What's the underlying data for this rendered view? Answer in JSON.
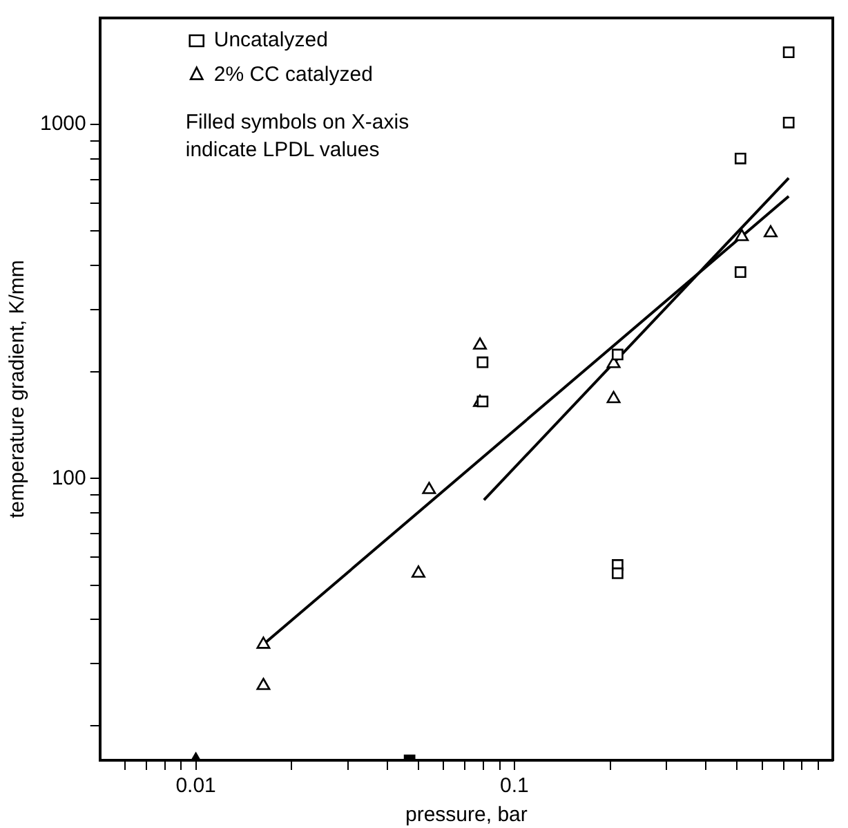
{
  "chart_data": {
    "type": "scatter",
    "xlabel": "pressure, bar",
    "ylabel": "temperature gradient, K/mm",
    "log": "xy",
    "xlim": [
      0.005,
      1
    ],
    "ylim": [
      16,
      2000
    ],
    "xticks": [
      {
        "value": 0.006,
        "label": null
      },
      {
        "value": 0.007,
        "label": null
      },
      {
        "value": 0.008,
        "label": null
      },
      {
        "value": 0.009,
        "label": null
      },
      0.01,
      {
        "value": 0.02,
        "label": null
      },
      {
        "value": 0.03,
        "label": null
      },
      {
        "value": 0.04,
        "label": null
      },
      {
        "value": 0.05,
        "label": null
      },
      {
        "value": 0.06,
        "label": null
      },
      {
        "value": 0.07,
        "label": null
      },
      {
        "value": 0.08,
        "label": null
      },
      {
        "value": 0.09,
        "label": null
      },
      0.1,
      {
        "value": 0.2,
        "label": null
      },
      {
        "value": 0.3,
        "label": null
      },
      {
        "value": 0.4,
        "label": null
      },
      {
        "value": 0.5,
        "label": null
      },
      {
        "value": 0.6,
        "label": null
      },
      {
        "value": 0.7,
        "label": null
      },
      {
        "value": 0.8,
        "label": null
      },
      {
        "value": 0.9,
        "label": null
      }
    ],
    "yticks": [
      {
        "value": 20,
        "label": null
      },
      {
        "value": 30,
        "label": null
      },
      {
        "value": 40,
        "label": null
      },
      {
        "value": 50,
        "label": null
      },
      {
        "value": 60,
        "label": null
      },
      {
        "value": 70,
        "label": null
      },
      {
        "value": 80,
        "label": null
      },
      {
        "value": 90,
        "label": null
      },
      100,
      {
        "value": 200,
        "label": null
      },
      {
        "value": 300,
        "label": null
      },
      {
        "value": 400,
        "label": null
      },
      {
        "value": 500,
        "label": null
      },
      {
        "value": 600,
        "label": null
      },
      {
        "value": 700,
        "label": null
      },
      {
        "value": 800,
        "label": null
      },
      {
        "value": 900,
        "label": null
      },
      1000
    ],
    "legend": "top left",
    "grid": false,
    "annotations": [
      "Filled symbols on X-axis indicate LPDL values"
    ],
    "series": [
      {
        "name": "Uncatalyzed",
        "marker": "square",
        "color": "#000000",
        "x": [
          0.0795,
          0.0795,
          0.211,
          0.211,
          0.211,
          0.513,
          0.513,
          0.727,
          0.727
        ],
        "values": [
          213,
          165,
          224,
          57,
          54,
          802,
          383,
          1600,
          1013
        ]
      },
      {
        "name": "2% CC catalyzed",
        "marker": "triangle",
        "color": "#000000",
        "x": [
          0.0163,
          0.0163,
          0.05,
          0.054,
          0.078,
          0.078,
          0.205,
          0.205,
          0.518,
          0.638
        ],
        "values": [
          34,
          26,
          54,
          93,
          238,
          164,
          211,
          168,
          482,
          494
        ]
      },
      {
        "marker": "triangle",
        "color": "#000000",
        "x": [
          0.01
        ],
        "values": [
          16
        ]
      },
      {
        "marker": "square",
        "color": "#000000",
        "x": [
          0.0469
        ],
        "values": [
          16
        ]
      },
      {
        "type": "line",
        "marker": "none",
        "line_style": "solid",
        "color": "#000000",
        "x": [
          0.0163,
          0.727
        ],
        "values": [
          34,
          627
        ]
      },
      {
        "type": "line",
        "marker": "none",
        "line_style": "solid",
        "color": "#000000",
        "x": [
          0.0803,
          0.727
        ],
        "values": [
          87,
          706
        ]
      }
    ]
  }
}
